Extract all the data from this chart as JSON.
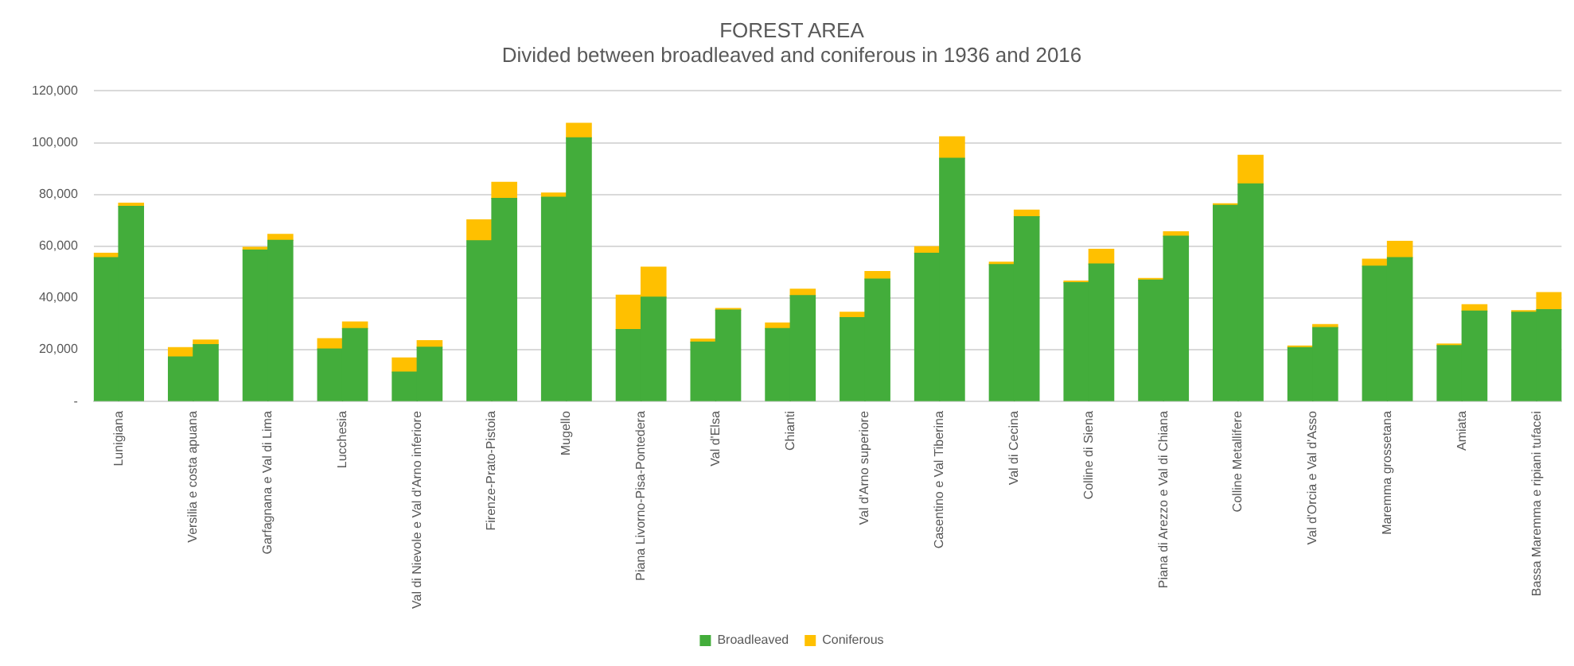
{
  "chart_data": {
    "type": "bar",
    "title": "FOREST AREA",
    "subtitle": "Divided between broadleaved and coniferous in 1936 and 2016",
    "categories": [
      "Lunigiana",
      null,
      null,
      "Versilia e costa apuana",
      null,
      null,
      "Garfagnana e Val di Lima",
      null,
      null,
      "Lucchesia",
      null,
      null,
      "Val di Nievole e Val d'Arno inferiore",
      null,
      null,
      "Firenze-Prato-Pistoia",
      null,
      null,
      "Mugello",
      null,
      null,
      "Piana Livorno-Pisa-Pontedera",
      null,
      null,
      "Val d'Elsa",
      null,
      null,
      "Chianti",
      null,
      null,
      "Val d'Arno superiore",
      null,
      null,
      "Casentino e Val Tiberina",
      null,
      null,
      "Val di Cecina",
      null,
      null,
      "Colline di Siena",
      null,
      null,
      "Piana di Arezzo e Val di Chiana",
      null,
      null,
      "Colline Metallifere",
      null,
      null,
      "Val d'Orcia e Val d'Asso",
      null,
      null,
      "Maremma grossetana",
      null,
      null,
      "Amiata",
      null,
      null,
      "Bassa Maremma e ripiani tufacei",
      null
    ],
    "stacked": true,
    "series": [
      {
        "name": "Broadleaved",
        "color": "#43ad3b",
        "values": [
          55600,
          75400,
          null,
          17200,
          22000,
          null,
          58500,
          62300,
          null,
          20300,
          28200,
          null,
          11400,
          21000,
          null,
          62100,
          78500,
          null,
          78900,
          101900,
          null,
          27800,
          40300,
          null,
          23000,
          35300,
          null,
          28200,
          40900,
          null,
          32400,
          47300,
          null,
          57300,
          94000,
          null,
          52900,
          71400,
          null,
          45900,
          53100,
          null,
          46900,
          63900,
          null,
          75800,
          84100,
          null,
          20800,
          28600,
          null,
          52300,
          55600,
          null,
          21600,
          34900,
          null,
          34500,
          35500
        ]
      },
      {
        "name": "Coniferous",
        "color": "#ffc000",
        "values": [
          1700,
          1200,
          null,
          3600,
          1700,
          null,
          1100,
          2300,
          null,
          4000,
          2500,
          null,
          5400,
          2500,
          null,
          8100,
          6200,
          null,
          1600,
          5600,
          null,
          13300,
          11600,
          null,
          1100,
          600,
          null,
          2100,
          2500,
          null,
          2100,
          2900,
          null,
          2500,
          8300,
          null,
          900,
          2500,
          null,
          600,
          5700,
          null,
          600,
          1700,
          null,
          600,
          11000,
          null,
          600,
          1100,
          null,
          2700,
          6300,
          null,
          600,
          2500,
          null,
          600,
          6600
        ]
      }
    ],
    "ylim": [
      0,
      120000
    ],
    "yticks": [
      {
        "value": 0,
        "label": "-"
      },
      {
        "value": 20000,
        "label": "20,000"
      },
      {
        "value": 40000,
        "label": "40,000"
      },
      {
        "value": 60000,
        "label": "60,000"
      },
      {
        "value": 80000,
        "label": "80,000"
      },
      {
        "value": 100000,
        "label": "100,000"
      },
      {
        "value": 120000,
        "label": "120,000"
      }
    ],
    "grid": "y",
    "legend": "bottom"
  }
}
